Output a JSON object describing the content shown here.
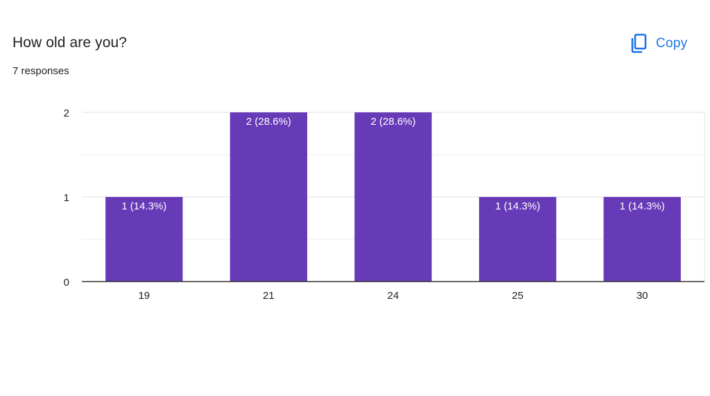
{
  "question": {
    "title": "How old are you?",
    "responses": "7 responses"
  },
  "toolbar": {
    "copy_label": "Copy",
    "copy_icon": "copy-icon"
  },
  "colors": {
    "bar": "#673ab7",
    "copy_accent": "#1a73e8",
    "text": "#202124",
    "grid": "#e6e6e6",
    "axis": "#333333"
  },
  "chart_data": {
    "type": "bar",
    "categories": [
      "19",
      "21",
      "24",
      "25",
      "30"
    ],
    "values": [
      1,
      2,
      2,
      1,
      1
    ],
    "data_labels": [
      "1 (14.3%)",
      "2 (28.6%)",
      "2 (28.6%)",
      "1 (14.3%)",
      "1 (14.3%)"
    ],
    "ylim": [
      0,
      2
    ],
    "yticks": [
      "0",
      "1",
      "2"
    ],
    "grid": true,
    "legend": "none"
  }
}
